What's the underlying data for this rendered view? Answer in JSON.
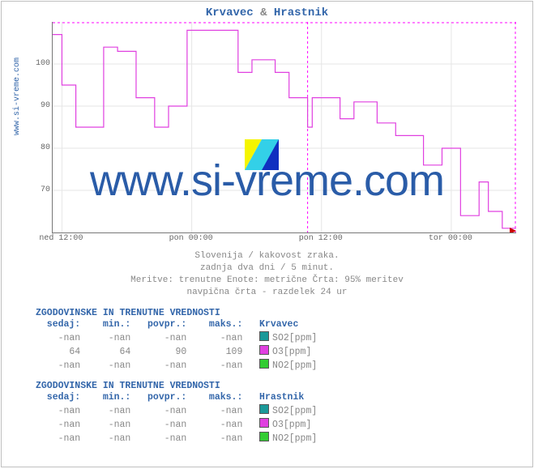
{
  "title_parts": {
    "a": "Krvavec",
    "amp": "&",
    "b": "Hrastnik"
  },
  "ylabel": "www.si-vreme.com",
  "watermark": "www.si-vreme.com",
  "chart": {
    "type": "line",
    "ylim": [
      60,
      110
    ],
    "yticks": [
      70,
      80,
      90,
      100
    ],
    "xticks": [
      "ned 12:00",
      "pon 00:00",
      "pon 12:00",
      "tor 00:00"
    ],
    "xtick_pos_pct": [
      2,
      30,
      58,
      86
    ],
    "background_color": "#ffffff",
    "grid_color": "#e6e6e6",
    "bound_color": "#ff00ff",
    "vline_color": "#ff00ff",
    "vline_pct": 55,
    "arrow_color": "#cc0000",
    "series": {
      "color": "#e040e0",
      "points": [
        [
          0,
          107
        ],
        [
          2,
          107
        ],
        [
          2,
          95
        ],
        [
          5,
          95
        ],
        [
          5,
          85
        ],
        [
          11,
          85
        ],
        [
          11,
          104
        ],
        [
          14,
          104
        ],
        [
          14,
          103
        ],
        [
          18,
          103
        ],
        [
          18,
          92
        ],
        [
          22,
          92
        ],
        [
          22,
          85
        ],
        [
          25,
          85
        ],
        [
          25,
          90
        ],
        [
          29,
          90
        ],
        [
          29,
          108
        ],
        [
          40,
          108
        ],
        [
          40,
          98
        ],
        [
          43,
          98
        ],
        [
          43,
          101
        ],
        [
          48,
          101
        ],
        [
          48,
          98
        ],
        [
          51,
          98
        ],
        [
          51,
          92
        ],
        [
          55,
          92
        ],
        [
          55,
          85
        ],
        [
          56,
          85
        ],
        [
          56,
          92
        ],
        [
          62,
          92
        ],
        [
          62,
          87
        ],
        [
          65,
          87
        ],
        [
          65,
          91
        ],
        [
          70,
          91
        ],
        [
          70,
          86
        ],
        [
          74,
          86
        ],
        [
          74,
          83
        ],
        [
          80,
          83
        ],
        [
          80,
          76
        ],
        [
          84,
          76
        ],
        [
          84,
          80
        ],
        [
          88,
          80
        ],
        [
          88,
          64
        ],
        [
          92,
          64
        ],
        [
          92,
          72
        ],
        [
          94,
          72
        ],
        [
          94,
          65
        ],
        [
          97,
          65
        ],
        [
          97,
          61
        ],
        [
          100,
          61
        ]
      ]
    }
  },
  "subtitle_lines": [
    "Slovenija / kakovost zraka.",
    "zadnja dva dni / 5 minut.",
    "Meritve: trenutne  Enote: metrične  Črta: 95% meritev",
    "navpična črta - razdelek 24 ur"
  ],
  "tables": [
    {
      "title": "ZGODOVINSKE IN TRENUTNE VREDNOSTI",
      "cols": [
        "sedaj:",
        "min.:",
        "povpr.:",
        "maks.:"
      ],
      "name": "Krvavec",
      "rows": [
        {
          "v": [
            "-nan",
            "-nan",
            "-nan",
            "-nan"
          ],
          "swatch": "#1a9999",
          "label": "SO2[ppm]"
        },
        {
          "v": [
            "64",
            "64",
            "90",
            "109"
          ],
          "swatch": "#e040e0",
          "label": "O3[ppm]"
        },
        {
          "v": [
            "-nan",
            "-nan",
            "-nan",
            "-nan"
          ],
          "swatch": "#33cc33",
          "label": "NO2[ppm]"
        }
      ]
    },
    {
      "title": "ZGODOVINSKE IN TRENUTNE VREDNOSTI",
      "cols": [
        "sedaj:",
        "min.:",
        "povpr.:",
        "maks.:"
      ],
      "name": "Hrastnik",
      "rows": [
        {
          "v": [
            "-nan",
            "-nan",
            "-nan",
            "-nan"
          ],
          "swatch": "#1a9999",
          "label": "SO2[ppm]"
        },
        {
          "v": [
            "-nan",
            "-nan",
            "-nan",
            "-nan"
          ],
          "swatch": "#e040e0",
          "label": "O3[ppm]"
        },
        {
          "v": [
            "-nan",
            "-nan",
            "-nan",
            "-nan"
          ],
          "swatch": "#33cc33",
          "label": "NO2[ppm]"
        }
      ]
    }
  ],
  "logo_colors": [
    "#f5f500",
    "#33d0e8",
    "#1030c0"
  ]
}
